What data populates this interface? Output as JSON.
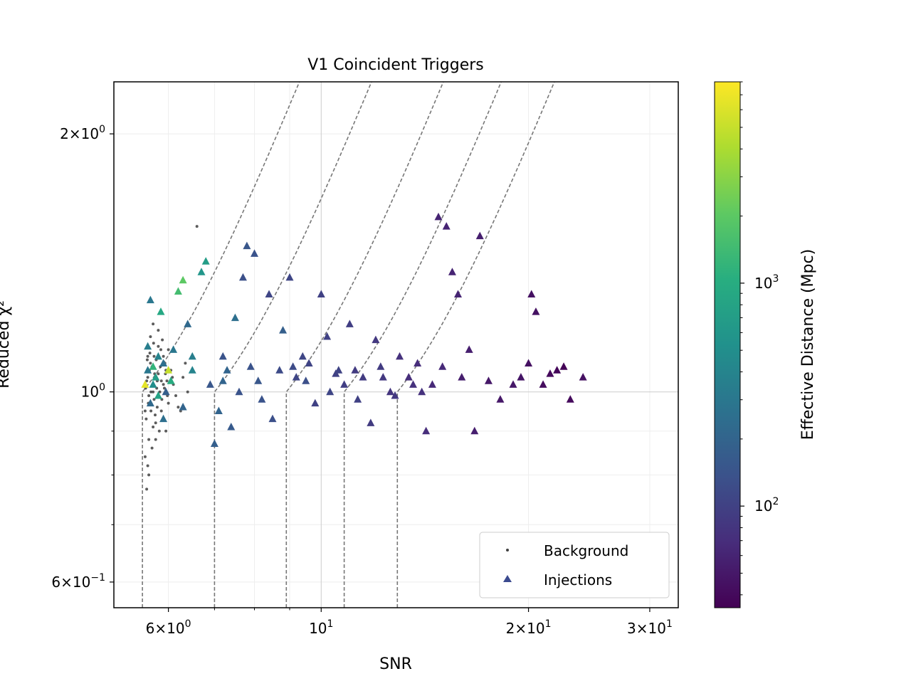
{
  "chart_data": {
    "type": "scatter",
    "title": "V1 Coincident Triggers",
    "xlabel": "SNR",
    "ylabel": "Reduced χ²",
    "xscale": "log",
    "yscale": "log",
    "xlim": [
      5.0,
      33.0
    ],
    "ylim": [
      0.56,
      2.3
    ],
    "grid": true,
    "legend_position": "lower-right",
    "xticks": [
      {
        "value": 6,
        "mantissa": "6",
        "exp": "0",
        "plain": false
      },
      {
        "value": 10,
        "mantissa": "",
        "exp": "1",
        "plain": true
      },
      {
        "value": 20,
        "mantissa": "2",
        "exp": "1",
        "plain": false
      },
      {
        "value": 30,
        "mantissa": "3",
        "exp": "1",
        "plain": false
      }
    ],
    "yticks": [
      {
        "value": 2,
        "mantissa": "2",
        "exp": "0",
        "plain": false
      },
      {
        "value": 1,
        "mantissa": "",
        "exp": "0",
        "plain": true
      },
      {
        "value": 0.6,
        "mantissa": "6",
        "exp": "−1",
        "plain": false
      }
    ],
    "colorbar": {
      "label": "Effective Distance (Mpc)",
      "scale": "log",
      "lim": [
        35,
        8000
      ],
      "ticks": [
        {
          "value": 100,
          "exp": "2"
        },
        {
          "value": 1000,
          "exp": "3"
        }
      ]
    },
    "threshold_snr_starts": [
      5.5,
      7.0,
      8.9,
      10.8,
      12.9
    ],
    "series": [
      {
        "name": "Background",
        "marker": "dot",
        "color": "#404040",
        "points": [
          [
            5.6,
            1.1
          ],
          [
            5.8,
            1.05
          ],
          [
            5.55,
            0.95
          ],
          [
            5.7,
            1.0
          ],
          [
            5.9,
            1.02
          ],
          [
            5.65,
            1.08
          ],
          [
            5.75,
            0.92
          ],
          [
            5.85,
            1.12
          ],
          [
            5.62,
            0.88
          ],
          [
            5.95,
            1.06
          ],
          [
            5.58,
            1.03
          ],
          [
            5.72,
            0.98
          ],
          [
            5.88,
            1.15
          ],
          [
            5.66,
            1.0
          ],
          [
            5.78,
            0.96
          ],
          [
            5.92,
            1.01
          ],
          [
            5.6,
            1.04
          ],
          [
            5.82,
            0.9
          ],
          [
            5.68,
            1.07
          ],
          [
            5.74,
            0.94
          ],
          [
            5.98,
            0.99
          ],
          [
            5.64,
            1.11
          ],
          [
            5.86,
            1.03
          ],
          [
            5.56,
            1.01
          ],
          [
            5.76,
            1.09
          ],
          [
            6.0,
            0.97
          ],
          [
            5.7,
            0.91
          ],
          [
            5.94,
            1.05
          ],
          [
            5.62,
            0.99
          ],
          [
            5.8,
            1.13
          ],
          [
            6.1,
            1.02
          ],
          [
            6.2,
            0.96
          ],
          [
            6.3,
            1.04
          ],
          [
            5.9,
            0.93
          ],
          [
            5.84,
            1.07
          ],
          [
            5.66,
            0.95
          ],
          [
            5.73,
            1.05
          ],
          [
            5.59,
            1.09
          ],
          [
            5.87,
            0.98
          ],
          [
            6.05,
            1.06
          ],
          [
            5.61,
            0.97
          ],
          [
            5.69,
            1.02
          ],
          [
            5.77,
            1.01
          ],
          [
            5.93,
            1.08
          ],
          [
            5.57,
            0.93
          ],
          [
            5.71,
            1.14
          ],
          [
            5.83,
            1.0
          ],
          [
            5.97,
            1.03
          ],
          [
            6.15,
            0.99
          ],
          [
            5.63,
            1.06
          ],
          [
            5.55,
            0.84
          ],
          [
            5.6,
            0.82
          ],
          [
            5.68,
            0.86
          ],
          [
            5.75,
            0.88
          ],
          [
            5.62,
            0.8
          ],
          [
            5.58,
            0.77
          ],
          [
            5.8,
            1.18
          ],
          [
            5.7,
            1.2
          ],
          [
            5.65,
            1.16
          ],
          [
            6.6,
            1.56
          ],
          [
            5.9,
            1.1
          ],
          [
            6.0,
            1.12
          ],
          [
            6.4,
            1.0
          ],
          [
            6.25,
            0.95
          ],
          [
            6.35,
            1.08
          ],
          [
            5.95,
            0.9
          ],
          [
            6.08,
            1.04
          ],
          [
            5.78,
            1.03
          ],
          [
            5.86,
            0.95
          ],
          [
            5.72,
            1.1
          ]
        ]
      },
      {
        "name": "Injections",
        "marker": "triangle",
        "points": [
          [
            5.6,
            1.06,
            300
          ],
          [
            5.7,
            1.02,
            500
          ],
          [
            5.65,
            0.97,
            220
          ],
          [
            5.8,
            1.1,
            400
          ],
          [
            5.75,
            1.04,
            700
          ],
          [
            5.9,
            1.08,
            250
          ],
          [
            6.0,
            1.06,
            5000
          ],
          [
            5.55,
            1.02,
            6500
          ],
          [
            5.85,
            1.24,
            900
          ],
          [
            6.2,
            1.31,
            1500
          ],
          [
            5.95,
            1.0,
            180
          ],
          [
            6.1,
            1.12,
            300
          ],
          [
            6.5,
            1.06,
            400
          ],
          [
            6.3,
            0.96,
            200
          ],
          [
            5.6,
            1.13,
            350
          ],
          [
            5.9,
            0.93,
            250
          ],
          [
            5.65,
            1.28,
            300
          ],
          [
            6.4,
            1.2,
            220
          ],
          [
            6.7,
            1.38,
            600
          ],
          [
            6.9,
            1.02,
            150
          ],
          [
            7.1,
            0.95,
            200
          ],
          [
            7.3,
            1.06,
            200
          ],
          [
            7.0,
            0.87,
            180
          ],
          [
            7.4,
            0.91,
            160
          ],
          [
            7.2,
            1.1,
            140
          ],
          [
            7.6,
            1.0,
            140
          ],
          [
            7.8,
            1.48,
            150
          ],
          [
            8.0,
            1.45,
            140
          ],
          [
            7.7,
            1.36,
            130
          ],
          [
            7.9,
            1.07,
            140
          ],
          [
            8.2,
            0.98,
            140
          ],
          [
            8.5,
            0.93,
            130
          ],
          [
            8.7,
            1.06,
            120
          ],
          [
            8.4,
            1.3,
            110
          ],
          [
            9.0,
            1.36,
            110
          ],
          [
            9.2,
            1.04,
            110
          ],
          [
            9.4,
            1.1,
            110
          ],
          [
            9.6,
            1.08,
            105
          ],
          [
            9.8,
            0.97,
            100
          ],
          [
            10.0,
            1.3,
            100
          ],
          [
            10.2,
            1.16,
            100
          ],
          [
            10.5,
            1.05,
            100
          ],
          [
            10.8,
            1.02,
            95
          ],
          [
            11.0,
            1.2,
            95
          ],
          [
            11.2,
            1.06,
            90
          ],
          [
            11.5,
            1.04,
            90
          ],
          [
            11.8,
            0.92,
            90
          ],
          [
            12.0,
            1.15,
            85
          ],
          [
            12.3,
            1.04,
            85
          ],
          [
            12.6,
            1.0,
            80
          ],
          [
            13.0,
            1.1,
            75
          ],
          [
            13.4,
            1.04,
            70
          ],
          [
            13.8,
            1.08,
            70
          ],
          [
            14.2,
            0.9,
            70
          ],
          [
            14.5,
            1.02,
            65
          ],
          [
            14.8,
            1.6,
            60
          ],
          [
            15.2,
            1.56,
            60
          ],
          [
            15.5,
            1.38,
            60
          ],
          [
            15.8,
            1.3,
            60
          ],
          [
            16.0,
            1.04,
            55
          ],
          [
            16.4,
            1.12,
            55
          ],
          [
            16.7,
            0.9,
            55
          ],
          [
            17.0,
            1.52,
            55
          ],
          [
            17.5,
            1.03,
            50
          ],
          [
            18.2,
            0.98,
            50
          ],
          [
            19.0,
            1.02,
            50
          ],
          [
            19.5,
            1.04,
            48
          ],
          [
            20.0,
            1.08,
            45
          ],
          [
            20.2,
            1.3,
            45
          ],
          [
            20.5,
            1.24,
            45
          ],
          [
            21.0,
            1.02,
            42
          ],
          [
            21.5,
            1.05,
            40
          ],
          [
            22.0,
            1.06,
            38
          ],
          [
            22.5,
            1.07,
            36
          ],
          [
            23.0,
            0.98,
            40
          ],
          [
            24.0,
            1.04,
            45
          ],
          [
            6.8,
            1.42,
            700
          ],
          [
            7.5,
            1.22,
            250
          ],
          [
            8.8,
            1.18,
            180
          ],
          [
            9.5,
            1.03,
            130
          ],
          [
            10.3,
            1.0,
            110
          ],
          [
            11.3,
            0.98,
            100
          ],
          [
            12.8,
            0.99,
            85
          ],
          [
            14.0,
            1.0,
            75
          ],
          [
            15.0,
            1.07,
            65
          ],
          [
            6.3,
            1.35,
            2000
          ],
          [
            5.7,
            1.07,
            1200
          ],
          [
            5.8,
            0.99,
            800
          ],
          [
            6.05,
            1.03,
            1000
          ],
          [
            6.5,
            1.1,
            350
          ],
          [
            7.2,
            1.03,
            200
          ],
          [
            8.1,
            1.03,
            150
          ],
          [
            9.1,
            1.07,
            120
          ],
          [
            10.6,
            1.06,
            105
          ],
          [
            12.2,
            1.07,
            90
          ],
          [
            13.6,
            1.02,
            75
          ]
        ]
      }
    ]
  }
}
